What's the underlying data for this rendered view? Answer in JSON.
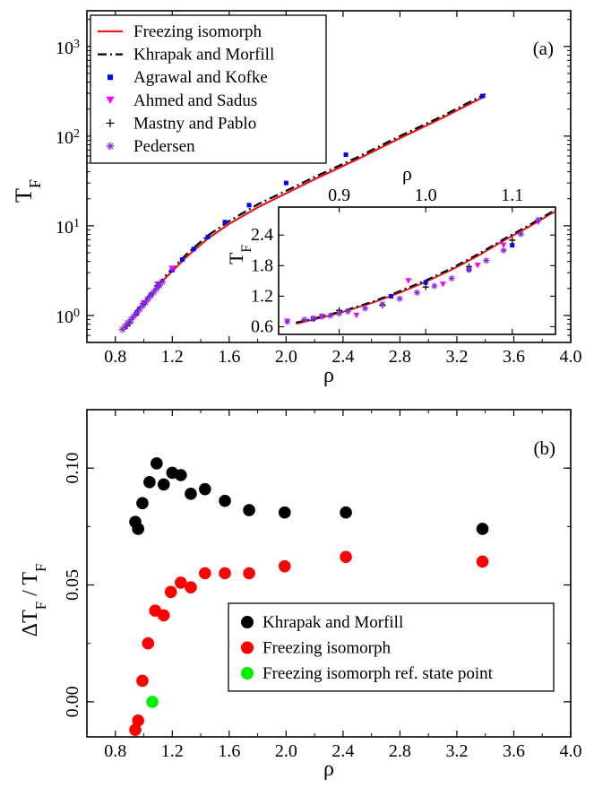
{
  "chart_data": [
    {
      "panel": "(a)",
      "type": "line",
      "xlabel": "ρ",
      "ylabel": "T_F",
      "xlim": [
        0.6,
        4.0
      ],
      "ylim": [
        0.5,
        2500
      ],
      "yscale": "log",
      "x_ticks": [
        "0.8",
        "1.2",
        "1.6",
        "2.0",
        "2.4",
        "2.8",
        "3.2",
        "3.6",
        "4.0"
      ],
      "y_ticks": [
        "10^0",
        "10^1",
        "10^2",
        "10^3"
      ],
      "legend_position": "top-left",
      "series": [
        {
          "name": "Freezing isomorph",
          "style": "line",
          "color": "#e41a1c",
          "x": [
            0.87,
            0.95,
            1.05,
            1.15,
            1.3,
            1.45,
            1.6,
            1.8,
            2.0,
            2.2,
            2.5,
            2.8,
            3.1,
            3.4
          ],
          "y": [
            0.7,
            1.1,
            1.7,
            2.6,
            4.5,
            7.2,
            10.5,
            16,
            23,
            33,
            55,
            95,
            160,
            280
          ]
        },
        {
          "name": "Khrapak and Morfill",
          "style": "dash-dot",
          "color": "#000000",
          "x": [
            0.87,
            0.95,
            1.05,
            1.15,
            1.3,
            1.45,
            1.6,
            1.8,
            2.0,
            2.2,
            2.5,
            2.8,
            3.1,
            3.4
          ],
          "y": [
            0.71,
            1.14,
            1.78,
            2.75,
            4.8,
            7.8,
            11.3,
            17.3,
            24.5,
            35,
            58,
            100,
            168,
            295
          ]
        },
        {
          "name": "Agrawal and Kofke",
          "style": "square",
          "color": "#0000ff",
          "x": [
            0.95,
            1.0,
            1.05,
            1.1,
            1.2,
            1.27,
            1.35,
            1.45,
            1.57,
            1.74,
            2.0,
            2.42,
            3.38
          ],
          "y": [
            1.05,
            1.35,
            1.7,
            2.15,
            3.2,
            4.2,
            5.5,
            7.5,
            11,
            17,
            30,
            62,
            280
          ]
        },
        {
          "name": "Ahmed and Sadus",
          "style": "triangle-down",
          "color": "#ff00ff",
          "x": [
            1.0,
            1.1,
            1.2
          ],
          "y": [
            1.35,
            2.2,
            3.3
          ]
        },
        {
          "name": "Mastny and Pablo",
          "style": "plus",
          "color": "#000000",
          "x": [
            0.9,
            1.0,
            1.1
          ],
          "y": [
            0.82,
            1.35,
            2.15
          ]
        },
        {
          "name": "Pedersen",
          "style": "asterisk",
          "color": "#8a2be2",
          "x": [
            0.85,
            0.87,
            0.89,
            0.91,
            0.93,
            0.95,
            0.97,
            0.99,
            1.01,
            1.03,
            1.05,
            1.07,
            1.09,
            1.11,
            1.13
          ],
          "y": [
            0.7,
            0.76,
            0.83,
            0.9,
            0.98,
            1.07,
            1.17,
            1.28,
            1.4,
            1.53,
            1.67,
            1.82,
            1.99,
            2.17,
            2.37
          ]
        }
      ],
      "inset": {
        "type": "line",
        "xlabel": "ρ",
        "ylabel": "T_F",
        "xlim": [
          0.83,
          1.15
        ],
        "ylim": [
          0.45,
          2.95
        ],
        "x_ticks": [
          "0.9",
          "1.0",
          "1.1"
        ],
        "y_ticks": [
          "0.6",
          "1.2",
          "1.8",
          "2.4"
        ],
        "series": [
          {
            "name": "Freezing isomorph",
            "style": "line",
            "color": "#e41a1c",
            "x": [
              0.85,
              0.88,
              0.91,
              0.94,
              0.97,
              1.0,
              1.03,
              1.06,
              1.09,
              1.12,
              1.15
            ],
            "y": [
              0.66,
              0.78,
              0.92,
              1.08,
              1.27,
              1.48,
              1.72,
              1.99,
              2.29,
              2.57,
              2.87
            ]
          },
          {
            "name": "Khrapak and Morfill",
            "style": "dash-dot",
            "color": "#000000",
            "x": [
              0.85,
              0.88,
              0.91,
              0.94,
              0.97,
              1.0,
              1.03,
              1.06,
              1.09,
              1.12,
              1.15
            ],
            "y": [
              0.68,
              0.8,
              0.94,
              1.1,
              1.3,
              1.51,
              1.75,
              2.02,
              2.32,
              2.6,
              2.9
            ]
          },
          {
            "name": "Agrawal and Kofke",
            "style": "square",
            "color": "#0000ff",
            "x": [
              0.87,
              0.96,
              1.0,
              1.05,
              1.1
            ],
            "y": [
              0.75,
              1.2,
              1.47,
              1.72,
              2.2
            ]
          },
          {
            "name": "Ahmed and Sadus",
            "style": "triangle-down",
            "color": "#ff00ff",
            "x": [
              0.84,
              0.88,
              0.92,
              0.98,
              1.02,
              1.06,
              1.09,
              1.13
            ],
            "y": [
              0.7,
              0.8,
              0.82,
              1.5,
              1.43,
              1.8,
              2.2,
              2.65
            ]
          },
          {
            "name": "Mastny and Pablo",
            "style": "plus",
            "color": "#000000",
            "x": [
              0.9,
              0.95,
              1.0,
              1.05,
              1.1
            ],
            "y": [
              0.92,
              1.02,
              1.38,
              1.78,
              2.3
            ]
          },
          {
            "name": "Pedersen",
            "style": "asterisk",
            "color": "#8a2be2",
            "x": [
              0.84,
              0.86,
              0.87,
              0.88,
              0.89,
              0.9,
              0.91,
              0.93,
              0.95,
              0.97,
              0.99,
              1.01,
              1.03,
              1.05,
              1.07,
              1.09,
              1.11,
              1.13
            ],
            "y": [
              0.7,
              0.74,
              0.77,
              0.8,
              0.82,
              0.86,
              0.9,
              0.96,
              1.04,
              1.15,
              1.27,
              1.4,
              1.55,
              1.72,
              1.9,
              2.1,
              2.42,
              2.7
            ]
          }
        ]
      }
    },
    {
      "panel": "(b)",
      "type": "scatter",
      "xlabel": "ρ",
      "ylabel": "ΔT_F / T_F",
      "xlim": [
        0.6,
        4.0
      ],
      "ylim": [
        -0.015,
        0.125
      ],
      "x_ticks": [
        "0.8",
        "1.2",
        "1.6",
        "2.0",
        "2.4",
        "2.8",
        "3.2",
        "3.6",
        "4.0"
      ],
      "y_ticks": [
        "0.00",
        "0.05",
        "0.10"
      ],
      "legend_position": "bottom-right",
      "series": [
        {
          "name": "Khrapak and Morfill",
          "color": "#000000",
          "x": [
            0.94,
            0.96,
            0.99,
            1.04,
            1.09,
            1.14,
            1.2,
            1.26,
            1.33,
            1.43,
            1.57,
            1.74,
            1.99,
            2.42,
            3.38
          ],
          "y": [
            0.077,
            0.074,
            0.085,
            0.094,
            0.102,
            0.093,
            0.098,
            0.097,
            0.089,
            0.091,
            0.086,
            0.082,
            0.081,
            0.081,
            0.074
          ]
        },
        {
          "name": "Freezing isomorph",
          "color": "#ff0000",
          "x": [
            0.94,
            0.96,
            0.99,
            1.03,
            1.08,
            1.14,
            1.19,
            1.26,
            1.33,
            1.43,
            1.57,
            1.74,
            1.99,
            2.42,
            3.38
          ],
          "y": [
            -0.012,
            -0.008,
            0.009,
            0.025,
            0.039,
            0.037,
            0.047,
            0.051,
            0.049,
            0.055,
            0.055,
            0.055,
            0.058,
            0.062,
            0.06
          ]
        },
        {
          "name": "Freezing isomorph ref. state point",
          "color": "#00ee00",
          "x": [
            1.06
          ],
          "y": [
            0.0
          ]
        }
      ]
    }
  ]
}
